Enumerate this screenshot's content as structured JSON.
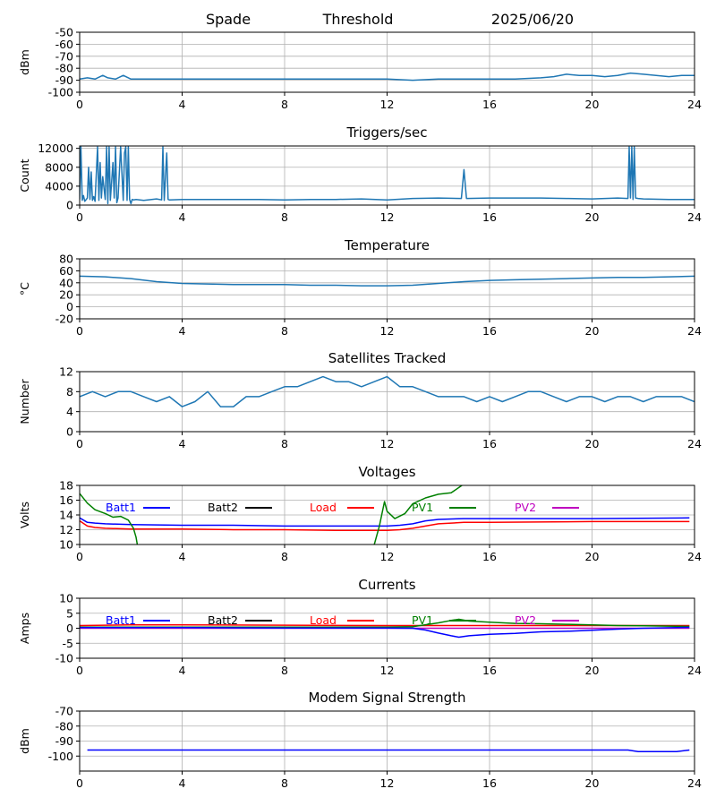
{
  "header": {
    "station": "Spade",
    "mode": "Threshold",
    "date": "2025/06/20"
  },
  "colors": {
    "series_default": "#1f77b4",
    "grid": "#b0b0b0",
    "batt1": "#0000ff",
    "batt2": "#000000",
    "load": "#ff0000",
    "pv1": "#008000",
    "pv2": "#bf00bf"
  },
  "chart_data": [
    {
      "id": "rssi",
      "type": "line",
      "title": "",
      "xlabel": "",
      "ylabel": "dBm",
      "xlim": [
        0,
        24
      ],
      "ylim": [
        -100,
        -50
      ],
      "xticks": [
        0,
        4,
        8,
        12,
        16,
        20,
        24
      ],
      "yticks": [
        -100,
        -90,
        -80,
        -70,
        -60,
        -50
      ],
      "grid": true,
      "series": [
        {
          "color": "#1f77b4",
          "x": [
            0,
            0.3,
            0.6,
            0.9,
            1.1,
            1.4,
            1.7,
            2.0,
            3,
            4,
            6,
            8,
            10,
            12,
            13,
            14,
            16,
            17,
            18,
            18.5,
            19,
            19.5,
            20,
            20.5,
            21,
            21.5,
            22,
            22.5,
            23,
            23.5,
            24
          ],
          "y": [
            -89,
            -88,
            -89,
            -86,
            -88,
            -89,
            -86,
            -89,
            -89,
            -89,
            -89,
            -89,
            -89,
            -89,
            -90,
            -89,
            -89,
            -89,
            -88,
            -87,
            -85,
            -86,
            -86,
            -87,
            -86,
            -84,
            -85,
            -86,
            -87,
            -86,
            -86
          ]
        }
      ]
    },
    {
      "id": "triggers",
      "type": "line",
      "title": "Triggers/sec",
      "xlabel": "",
      "ylabel": "Count",
      "xlim": [
        0,
        24
      ],
      "ylim": [
        0,
        12500
      ],
      "xticks": [
        0,
        4,
        8,
        12,
        16,
        20,
        24
      ],
      "yticks": [
        0,
        4000,
        8000,
        12000
      ],
      "grid": true,
      "series": [
        {
          "color": "#1f77b4",
          "x": [
            0,
            0.05,
            0.1,
            0.15,
            0.2,
            0.3,
            0.35,
            0.4,
            0.45,
            0.5,
            0.55,
            0.6,
            0.7,
            0.75,
            0.8,
            0.85,
            0.9,
            1.0,
            1.05,
            1.1,
            1.15,
            1.2,
            1.3,
            1.35,
            1.4,
            1.45,
            1.5,
            1.6,
            1.7,
            1.75,
            1.8,
            1.85,
            1.9,
            1.95,
            2.0,
            2.05,
            2.1,
            2.2,
            2.5,
            3.0,
            3.2,
            3.25,
            3.3,
            3.4,
            3.45,
            3.5,
            4,
            5,
            6,
            7,
            8,
            9,
            10,
            11,
            12,
            13,
            14,
            14.9,
            15.0,
            15.1,
            16,
            17,
            18,
            19,
            20,
            21,
            21.4,
            21.45,
            21.5,
            21.55,
            21.6,
            21.65,
            21.7,
            21.8,
            22,
            23,
            24
          ],
          "y": [
            1200,
            12300,
            1000,
            2000,
            800,
            1500,
            8000,
            1200,
            7000,
            1000,
            1800,
            800,
            12300,
            1000,
            9000,
            1500,
            6000,
            1200,
            12300,
            300,
            12300,
            1000,
            9000,
            1500,
            12300,
            500,
            1500,
            12300,
            1000,
            11000,
            12300,
            1000,
            12300,
            1200,
            300,
            1200,
            1100,
            1200,
            1000,
            1300,
            1100,
            12300,
            1000,
            11000,
            1200,
            1100,
            1200,
            1200,
            1200,
            1200,
            1100,
            1200,
            1200,
            1300,
            1100,
            1400,
            1500,
            1400,
            7500,
            1400,
            1500,
            1500,
            1500,
            1400,
            1300,
            1500,
            1400,
            12300,
            1500,
            12300,
            1200,
            12300,
            1500,
            1400,
            1300,
            1200,
            1200
          ]
        }
      ]
    },
    {
      "id": "temp",
      "type": "line",
      "title": "Temperature",
      "xlabel": "",
      "ylabel": "°C",
      "xlim": [
        0,
        24
      ],
      "ylim": [
        -20,
        80
      ],
      "xticks": [
        0,
        4,
        8,
        12,
        16,
        20,
        24
      ],
      "yticks": [
        -20,
        0,
        20,
        40,
        60,
        80
      ],
      "grid": true,
      "series": [
        {
          "color": "#1f77b4",
          "x": [
            0,
            1,
            2,
            3,
            4,
            5,
            6,
            7,
            8,
            9,
            10,
            11,
            12,
            13,
            14,
            15,
            16,
            17,
            18,
            19,
            20,
            21,
            22,
            23,
            24
          ],
          "y": [
            51,
            50,
            47,
            42,
            39,
            38,
            37,
            37,
            37,
            36,
            36,
            35,
            35,
            36,
            39,
            42,
            44,
            45,
            46,
            47,
            48,
            49,
            49,
            50,
            51
          ]
        }
      ]
    },
    {
      "id": "sats",
      "type": "line",
      "title": "Satellites Tracked",
      "xlabel": "",
      "ylabel": "Number",
      "xlim": [
        0,
        24
      ],
      "ylim": [
        0,
        12
      ],
      "xticks": [
        0,
        4,
        8,
        12,
        16,
        20,
        24
      ],
      "yticks": [
        0,
        4,
        8,
        12
      ],
      "grid": true,
      "series": [
        {
          "color": "#1f77b4",
          "x": [
            0,
            0.5,
            1,
            1.5,
            2,
            2.5,
            3,
            3.5,
            4,
            4.5,
            5,
            5.5,
            6,
            6.5,
            7,
            7.5,
            8,
            8.5,
            9,
            9.5,
            10,
            10.5,
            11,
            11.5,
            12,
            12.5,
            13,
            13.5,
            14,
            14.5,
            15,
            15.5,
            16,
            16.5,
            17,
            17.5,
            18,
            18.5,
            19,
            19.5,
            20,
            20.5,
            21,
            21.5,
            22,
            22.5,
            23,
            23.5,
            24
          ],
          "y": [
            7,
            8,
            7,
            8,
            8,
            7,
            6,
            7,
            5,
            6,
            8,
            5,
            5,
            7,
            7,
            8,
            9,
            9,
            10,
            11,
            10,
            10,
            9,
            10,
            11,
            9,
            9,
            8,
            7,
            7,
            7,
            6,
            7,
            6,
            7,
            8,
            8,
            7,
            6,
            7,
            7,
            6,
            7,
            7,
            6,
            7,
            7,
            7,
            6
          ]
        }
      ]
    },
    {
      "id": "volts",
      "type": "line",
      "title": "Voltages",
      "xlabel": "",
      "ylabel": "Volts",
      "xlim": [
        0,
        24
      ],
      "ylim": [
        10,
        18
      ],
      "xticks": [
        0,
        4,
        8,
        12,
        16,
        20,
        24
      ],
      "yticks": [
        10,
        12,
        14,
        16,
        18
      ],
      "grid": true,
      "legend": [
        {
          "name": "Batt1",
          "color": "#0000ff"
        },
        {
          "name": "Batt2",
          "color": "#000000"
        },
        {
          "name": "Load",
          "color": "#ff0000"
        },
        {
          "name": "PV1",
          "color": "#008000"
        },
        {
          "name": "PV2",
          "color": "#bf00bf"
        }
      ],
      "series": [
        {
          "color": "#0000ff",
          "x": [
            0,
            0.3,
            0.6,
            1,
            2,
            4,
            6,
            8,
            10,
            12,
            12.5,
            13,
            13.5,
            14,
            15,
            16,
            20,
            23.8
          ],
          "y": [
            13.6,
            13.0,
            12.9,
            12.8,
            12.7,
            12.6,
            12.6,
            12.5,
            12.5,
            12.5,
            12.6,
            12.8,
            13.2,
            13.4,
            13.5,
            13.5,
            13.5,
            13.6
          ]
        },
        {
          "color": "#ff0000",
          "x": [
            0,
            0.3,
            0.6,
            1,
            2,
            4,
            6,
            8,
            10,
            12,
            12.5,
            13,
            13.5,
            14,
            15,
            16,
            20,
            23.8
          ],
          "y": [
            13.2,
            12.5,
            12.3,
            12.2,
            12.1,
            12.1,
            12.0,
            12.0,
            11.9,
            11.9,
            12.0,
            12.2,
            12.5,
            12.8,
            13.0,
            13.0,
            13.1,
            13.1
          ]
        },
        {
          "color": "#008000",
          "x": [
            0,
            0.3,
            0.6,
            1,
            1.3,
            1.6,
            1.9,
            2.1,
            2.2,
            2.25
          ],
          "y": [
            16.9,
            15.6,
            14.7,
            14.2,
            13.7,
            13.8,
            13.3,
            12.2,
            11.0,
            10.0
          ]
        },
        {
          "color": "#008000",
          "x": [
            11.5,
            11.7,
            11.9,
            12.0,
            12.3,
            12.7,
            13.0,
            13.5,
            14.0,
            14.5,
            15.0
          ],
          "y": [
            10.0,
            12.5,
            15.8,
            14.5,
            13.5,
            14.2,
            15.5,
            16.3,
            16.8,
            17.0,
            18.2
          ]
        }
      ]
    },
    {
      "id": "amps",
      "type": "line",
      "title": "Currents",
      "xlabel": "",
      "ylabel": "Amps",
      "xlim": [
        0,
        24
      ],
      "ylim": [
        -10,
        10
      ],
      "xticks": [
        0,
        4,
        8,
        12,
        16,
        20,
        24
      ],
      "yticks": [
        -10,
        -5,
        0,
        5,
        10
      ],
      "grid": true,
      "legend": [
        {
          "name": "Batt1",
          "color": "#0000ff"
        },
        {
          "name": "Batt2",
          "color": "#000000"
        },
        {
          "name": "Load",
          "color": "#ff0000"
        },
        {
          "name": "PV1",
          "color": "#008000"
        },
        {
          "name": "PV2",
          "color": "#bf00bf"
        }
      ],
      "series": [
        {
          "color": "#bf00bf",
          "x": [
            0,
            4,
            8,
            12,
            16,
            20,
            23.8
          ],
          "y": [
            0.0,
            0.0,
            0.0,
            0.0,
            0.0,
            0.0,
            0.0
          ]
        },
        {
          "color": "#ff0000",
          "x": [
            0,
            2,
            4,
            8,
            12,
            16,
            20,
            23.8
          ],
          "y": [
            0.9,
            1.1,
            1.1,
            1.0,
            0.9,
            0.9,
            0.9,
            0.9
          ]
        },
        {
          "color": "#008000",
          "x": [
            0,
            4,
            8,
            12,
            13,
            14,
            14.5,
            14.8,
            15.2,
            16,
            17,
            18,
            19,
            20,
            21,
            22,
            23.8
          ],
          "y": [
            0.4,
            0.4,
            0.4,
            0.4,
            0.5,
            1.8,
            2.6,
            3.0,
            2.4,
            2.0,
            1.6,
            1.5,
            1.3,
            1.1,
            0.9,
            0.8,
            0.6
          ]
        },
        {
          "color": "#0000ff",
          "x": [
            0,
            4,
            8,
            12,
            13,
            13.5,
            14,
            14.5,
            14.8,
            15.2,
            16,
            17,
            18,
            19,
            20,
            21,
            22,
            23.8
          ],
          "y": [
            0.2,
            0.2,
            0.1,
            0.1,
            0.0,
            -0.6,
            -1.6,
            -2.5,
            -3.0,
            -2.5,
            -2.0,
            -1.7,
            -1.2,
            -1.0,
            -0.7,
            -0.3,
            0.0,
            0.3
          ]
        }
      ]
    },
    {
      "id": "modem",
      "type": "line",
      "title": "Modem Signal Strength",
      "xlabel": "",
      "ylabel": "dBm",
      "xlim": [
        0,
        24
      ],
      "ylim": [
        -110,
        -70
      ],
      "xticks": [
        0,
        4,
        8,
        12,
        16,
        20,
        24
      ],
      "yticks": [
        -100,
        -90,
        -80,
        -70
      ],
      "grid": true,
      "series": [
        {
          "color": "#0000ff",
          "x": [
            0.3,
            4,
            8,
            12,
            16,
            20,
            21.4,
            21.8,
            22,
            23,
            23.3,
            23.8
          ],
          "y": [
            -96,
            -96,
            -96,
            -96,
            -96,
            -96,
            -96,
            -97,
            -97,
            -97,
            -97,
            -96
          ]
        }
      ]
    }
  ]
}
